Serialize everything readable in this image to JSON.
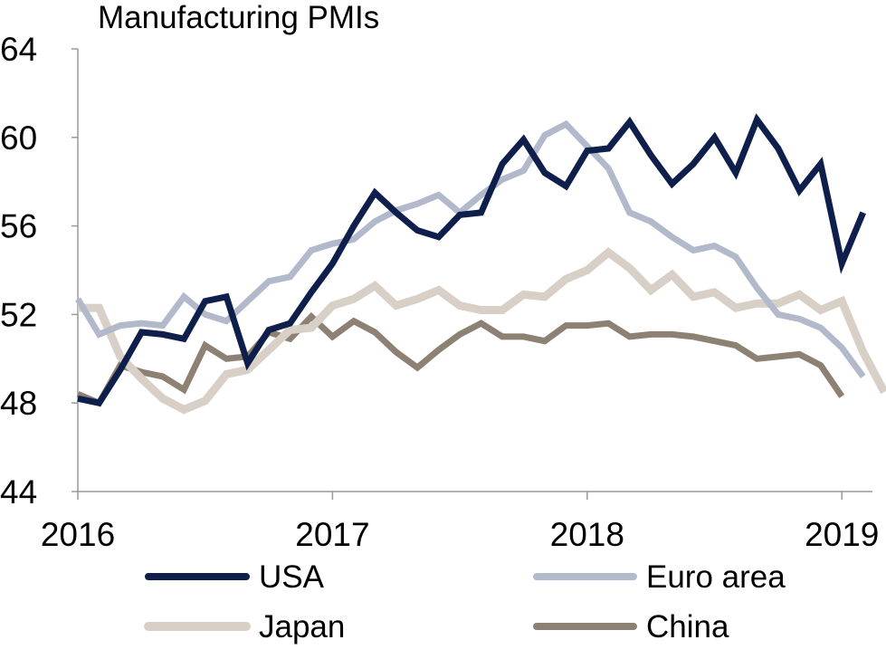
{
  "chart_data": {
    "type": "line",
    "title": "Manufacturing PMIs",
    "ylim": [
      44,
      64
    ],
    "yticks": [
      44,
      48,
      52,
      56,
      60,
      64
    ],
    "xlim": [
      2016.0,
      2019.12
    ],
    "xticks": [
      {
        "label": "2016",
        "value": 2016
      },
      {
        "label": "2017",
        "value": 2017
      },
      {
        "label": "2018",
        "value": 2018
      },
      {
        "label": "2019",
        "value": 2019
      }
    ],
    "grid": false,
    "legend_position": "bottom",
    "x_start": 2016.0,
    "x_step_months": 1,
    "series": [
      {
        "name": "USA",
        "color": "#0f1f4b",
        "width": 7,
        "values": [
          48.2,
          48.0,
          49.5,
          51.2,
          51.1,
          50.9,
          52.6,
          52.8,
          49.8,
          51.3,
          51.6,
          53.0,
          54.3,
          56.0,
          57.5,
          56.6,
          55.8,
          55.5,
          56.5,
          56.6,
          58.8,
          59.9,
          58.4,
          57.8,
          59.4,
          59.5,
          60.7,
          59.2,
          57.9,
          58.8,
          60.0,
          58.4,
          60.8,
          59.5,
          57.6,
          58.8,
          54.3,
          56.6
        ]
      },
      {
        "name": "Euro area",
        "color": "#b1b9cb",
        "width": 7,
        "values": [
          52.7,
          51.1,
          51.5,
          51.6,
          51.5,
          52.8,
          52.0,
          51.7,
          52.6,
          53.5,
          53.7,
          54.9,
          55.2,
          55.4,
          56.2,
          56.7,
          57.0,
          57.4,
          56.6,
          57.4,
          58.1,
          58.5,
          60.1,
          60.6,
          59.6,
          58.6,
          56.6,
          56.2,
          55.5,
          54.9,
          55.1,
          54.6,
          53.2,
          52.0,
          51.8,
          51.4,
          50.5,
          49.2
        ]
      },
      {
        "name": "Japan",
        "color": "#d8d0c6",
        "width": 9,
        "values": [
          52.3,
          52.3,
          50.1,
          49.1,
          48.2,
          47.7,
          48.1,
          49.3,
          49.5,
          50.4,
          51.3,
          51.4,
          52.4,
          52.7,
          53.3,
          52.4,
          52.7,
          53.1,
          52.4,
          52.2,
          52.2,
          52.9,
          52.8,
          53.6,
          54.0,
          54.8,
          54.1,
          53.1,
          53.8,
          52.8,
          53.0,
          52.3,
          52.5,
          52.5,
          52.9,
          52.2,
          52.6,
          50.3,
          48.5
        ]
      },
      {
        "name": "China",
        "color": "#8d8173",
        "width": 7,
        "values": [
          48.4,
          48.0,
          49.7,
          49.4,
          49.2,
          48.6,
          50.6,
          50.0,
          50.1,
          51.2,
          50.9,
          51.9,
          51.0,
          51.7,
          51.2,
          50.3,
          49.6,
          50.4,
          51.1,
          51.6,
          51.0,
          51.0,
          50.8,
          51.5,
          51.5,
          51.6,
          51.0,
          51.1,
          51.1,
          51.0,
          50.8,
          50.6,
          50.0,
          50.1,
          50.2,
          49.7,
          48.3
        ]
      }
    ]
  }
}
